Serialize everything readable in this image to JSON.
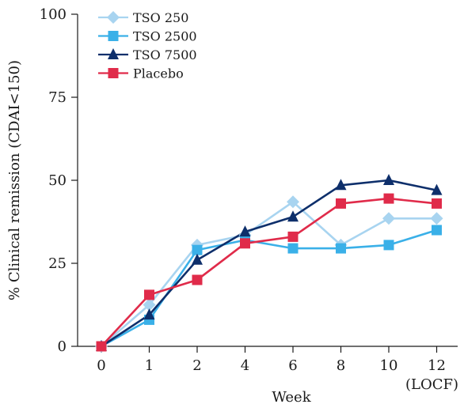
{
  "chart_data": {
    "type": "line",
    "xlabel": "Week",
    "ylabel": "% Clinical remission (CDAI<150)",
    "categories": [
      "0",
      "1",
      "2",
      "4",
      "6",
      "8",
      "10",
      "12"
    ],
    "category_sublabels": [
      "",
      "",
      "",
      "",
      "",
      "",
      "",
      "(LOCF)"
    ],
    "ylim": [
      0,
      100
    ],
    "yticks": [
      0,
      25,
      50,
      75,
      100
    ],
    "grid": false,
    "legend_position": "top-left",
    "series": [
      {
        "name": "TSO 250",
        "color": "#a8d4f0",
        "marker": "diamond",
        "values": [
          0,
          12.5,
          30.5,
          33.5,
          43.5,
          30.5,
          38.5,
          38.5
        ]
      },
      {
        "name": "TSO 2500",
        "color": "#3ab0e8",
        "marker": "square",
        "values": [
          0,
          8,
          29,
          32,
          29.5,
          29.5,
          30.5,
          35
        ]
      },
      {
        "name": "TSO 7500",
        "color": "#0e2f6b",
        "marker": "triangle",
        "values": [
          0,
          9.5,
          26,
          34.5,
          39,
          48.5,
          50,
          47
        ]
      },
      {
        "name": "Placebo",
        "color": "#e02b4a",
        "marker": "square",
        "values": [
          0,
          15.5,
          20,
          31,
          33,
          43,
          44.5,
          43
        ]
      }
    ]
  }
}
